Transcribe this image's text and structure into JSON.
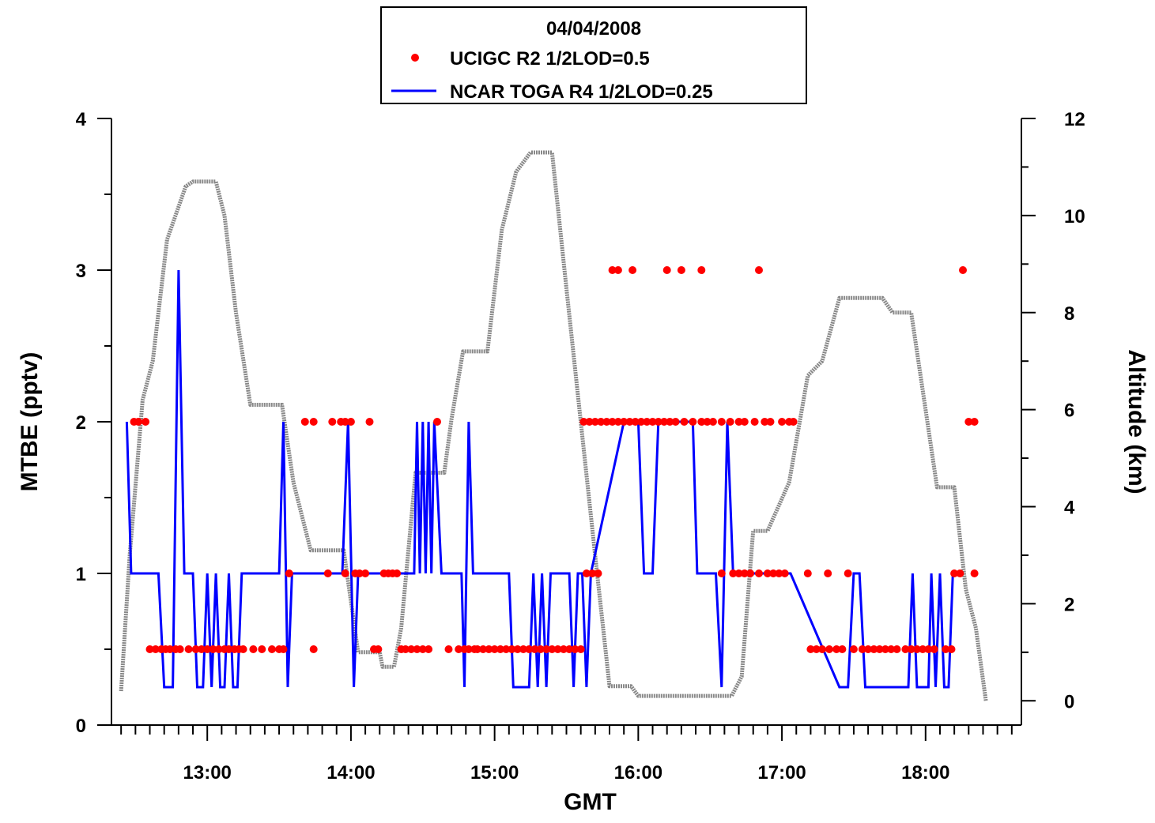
{
  "chart_data": {
    "type": "line",
    "title": "04/04/2008",
    "xlabel": "GMT",
    "ylabel": "MTBE (pptv)",
    "y2label": "Altitude (km)",
    "xlim": [
      12.333,
      18.667
    ],
    "ylim": [
      0,
      4
    ],
    "y2lim": [
      -0.5,
      12
    ],
    "x_ticks": [
      13,
      14,
      15,
      16,
      17,
      18
    ],
    "x_tick_labels": [
      "13:00",
      "14:00",
      "15:00",
      "16:00",
      "17:00",
      "18:00"
    ],
    "y_ticks": [
      0,
      1,
      2,
      3,
      4
    ],
    "y_tick_labels": [
      "0",
      "1",
      "2",
      "3",
      "4"
    ],
    "y2_ticks": [
      0,
      2,
      4,
      6,
      8,
      10,
      12
    ],
    "y2_tick_labels": [
      "0",
      "2",
      "4",
      "6",
      "8",
      "10",
      "12"
    ],
    "legend_position": "top-center",
    "series": [
      {
        "name": "UCIGC R2 1/2LOD=0.5",
        "style": "markers",
        "color": "#ff0000",
        "axis": "left",
        "points": [
          [
            12.49,
            2
          ],
          [
            12.52,
            2
          ],
          [
            12.57,
            2
          ],
          [
            12.6,
            0.5
          ],
          [
            12.64,
            0.5
          ],
          [
            12.68,
            0.5
          ],
          [
            12.71,
            0.5
          ],
          [
            12.74,
            0.5
          ],
          [
            12.78,
            0.5
          ],
          [
            12.81,
            0.5
          ],
          [
            12.87,
            0.5
          ],
          [
            12.92,
            0.5
          ],
          [
            12.96,
            0.5
          ],
          [
            13.0,
            0.5
          ],
          [
            13.04,
            0.5
          ],
          [
            13.08,
            0.5
          ],
          [
            13.12,
            0.5
          ],
          [
            13.15,
            0.5
          ],
          [
            13.19,
            0.5
          ],
          [
            13.22,
            0.5
          ],
          [
            13.25,
            0.5
          ],
          [
            13.32,
            0.5
          ],
          [
            13.38,
            0.5
          ],
          [
            13.45,
            0.5
          ],
          [
            13.5,
            0.5
          ],
          [
            13.53,
            0.5
          ],
          [
            13.57,
            1
          ],
          [
            13.68,
            2
          ],
          [
            13.74,
            2
          ],
          [
            13.74,
            0.5
          ],
          [
            13.84,
            1
          ],
          [
            13.87,
            2
          ],
          [
            13.93,
            2
          ],
          [
            13.96,
            2
          ],
          [
            13.96,
            1
          ],
          [
            14.0,
            2
          ],
          [
            14.03,
            1
          ],
          [
            14.06,
            1
          ],
          [
            14.1,
            1
          ],
          [
            14.13,
            2
          ],
          [
            14.16,
            0.5
          ],
          [
            14.19,
            0.5
          ],
          [
            14.23,
            1
          ],
          [
            14.26,
            1
          ],
          [
            14.29,
            1
          ],
          [
            14.32,
            1
          ],
          [
            14.35,
            0.5
          ],
          [
            14.38,
            0.5
          ],
          [
            14.42,
            0.5
          ],
          [
            14.46,
            0.5
          ],
          [
            14.5,
            0.5
          ],
          [
            14.54,
            0.5
          ],
          [
            14.6,
            2
          ],
          [
            14.68,
            0.5
          ],
          [
            14.75,
            0.5
          ],
          [
            14.79,
            0.5
          ],
          [
            14.82,
            0.5
          ],
          [
            14.86,
            0.5
          ],
          [
            14.88,
            0.5
          ],
          [
            14.92,
            0.5
          ],
          [
            14.96,
            0.5
          ],
          [
            15.0,
            0.5
          ],
          [
            15.04,
            0.5
          ],
          [
            15.08,
            0.5
          ],
          [
            15.12,
            0.5
          ],
          [
            15.16,
            0.5
          ],
          [
            15.2,
            0.5
          ],
          [
            15.24,
            0.5
          ],
          [
            15.28,
            0.5
          ],
          [
            15.32,
            0.5
          ],
          [
            15.36,
            0.5
          ],
          [
            15.4,
            0.5
          ],
          [
            15.44,
            0.5
          ],
          [
            15.48,
            0.5
          ],
          [
            15.52,
            0.5
          ],
          [
            15.56,
            0.5
          ],
          [
            15.6,
            0.5
          ],
          [
            15.64,
            1
          ],
          [
            15.68,
            1
          ],
          [
            15.72,
            1
          ],
          [
            15.62,
            2
          ],
          [
            15.66,
            2
          ],
          [
            15.7,
            2
          ],
          [
            15.74,
            2
          ],
          [
            15.78,
            2
          ],
          [
            15.82,
            2
          ],
          [
            15.86,
            2
          ],
          [
            15.9,
            2
          ],
          [
            15.94,
            2
          ],
          [
            15.98,
            2
          ],
          [
            16.02,
            2
          ],
          [
            16.06,
            2
          ],
          [
            16.1,
            2
          ],
          [
            16.14,
            2
          ],
          [
            16.18,
            2
          ],
          [
            16.22,
            2
          ],
          [
            16.26,
            2
          ],
          [
            16.32,
            2
          ],
          [
            16.38,
            2
          ],
          [
            16.44,
            2
          ],
          [
            16.48,
            2
          ],
          [
            16.52,
            2
          ],
          [
            16.58,
            2
          ],
          [
            16.64,
            2
          ],
          [
            16.7,
            2
          ],
          [
            16.74,
            2
          ],
          [
            16.81,
            2
          ],
          [
            16.88,
            2
          ],
          [
            16.92,
            2
          ],
          [
            17.0,
            2
          ],
          [
            17.05,
            2
          ],
          [
            17.08,
            2
          ],
          [
            15.82,
            3
          ],
          [
            15.86,
            3
          ],
          [
            15.96,
            3
          ],
          [
            16.2,
            3
          ],
          [
            16.3,
            3
          ],
          [
            16.44,
            3
          ],
          [
            16.84,
            3
          ],
          [
            18.26,
            3
          ],
          [
            16.58,
            1
          ],
          [
            16.66,
            1
          ],
          [
            16.7,
            1
          ],
          [
            16.74,
            1
          ],
          [
            16.78,
            1
          ],
          [
            16.84,
            1
          ],
          [
            16.9,
            1
          ],
          [
            16.94,
            1
          ],
          [
            16.98,
            1
          ],
          [
            17.02,
            1
          ],
          [
            17.18,
            1
          ],
          [
            17.32,
            1
          ],
          [
            17.46,
            1
          ],
          [
            17.2,
            0.5
          ],
          [
            17.24,
            0.5
          ],
          [
            17.28,
            0.5
          ],
          [
            17.33,
            0.5
          ],
          [
            17.38,
            0.5
          ],
          [
            17.42,
            0.5
          ],
          [
            17.5,
            0.5
          ],
          [
            17.56,
            0.5
          ],
          [
            17.6,
            0.5
          ],
          [
            17.64,
            0.5
          ],
          [
            17.68,
            0.5
          ],
          [
            17.72,
            0.5
          ],
          [
            17.76,
            0.5
          ],
          [
            17.8,
            0.5
          ],
          [
            17.86,
            0.5
          ],
          [
            17.9,
            0.5
          ],
          [
            17.94,
            0.5
          ],
          [
            17.98,
            0.5
          ],
          [
            18.02,
            0.5
          ],
          [
            18.06,
            0.5
          ],
          [
            18.14,
            0.5
          ],
          [
            18.18,
            0.5
          ],
          [
            18.2,
            1
          ],
          [
            18.24,
            1
          ],
          [
            18.34,
            1
          ],
          [
            18.3,
            2
          ],
          [
            18.34,
            2
          ]
        ]
      },
      {
        "name": "NCAR TOGA R4 1/2LOD=0.25",
        "style": "line",
        "color": "#0000ff",
        "axis": "left",
        "points": [
          [
            12.44,
            2
          ],
          [
            12.47,
            1
          ],
          [
            12.66,
            1
          ],
          [
            12.7,
            0.25
          ],
          [
            12.76,
            0.25
          ],
          [
            12.8,
            3
          ],
          [
            12.84,
            1
          ],
          [
            12.9,
            1
          ],
          [
            12.93,
            0.25
          ],
          [
            12.97,
            0.25
          ],
          [
            13.0,
            1
          ],
          [
            13.03,
            0.25
          ],
          [
            13.06,
            1
          ],
          [
            13.09,
            0.25
          ],
          [
            13.12,
            0.25
          ],
          [
            13.15,
            1
          ],
          [
            13.18,
            0.25
          ],
          [
            13.21,
            0.25
          ],
          [
            13.24,
            1
          ],
          [
            13.5,
            1
          ],
          [
            13.53,
            2
          ],
          [
            13.56,
            0.25
          ],
          [
            13.59,
            1
          ],
          [
            13.94,
            1
          ],
          [
            13.98,
            2
          ],
          [
            14.02,
            0.25
          ],
          [
            14.05,
            1
          ],
          [
            14.44,
            1
          ],
          [
            14.46,
            2
          ],
          [
            14.48,
            1
          ],
          [
            14.5,
            2
          ],
          [
            14.52,
            1
          ],
          [
            14.54,
            2
          ],
          [
            14.56,
            1
          ],
          [
            14.58,
            2
          ],
          [
            14.63,
            1
          ],
          [
            14.77,
            1
          ],
          [
            14.79,
            0.25
          ],
          [
            14.82,
            2
          ],
          [
            14.85,
            1
          ],
          [
            15.1,
            1
          ],
          [
            15.13,
            0.25
          ],
          [
            15.24,
            0.25
          ],
          [
            15.27,
            1
          ],
          [
            15.3,
            0.25
          ],
          [
            15.33,
            1
          ],
          [
            15.36,
            0.25
          ],
          [
            15.39,
            1
          ],
          [
            15.52,
            1
          ],
          [
            15.55,
            0.25
          ],
          [
            15.58,
            1
          ],
          [
            15.61,
            1
          ],
          [
            15.64,
            0.25
          ],
          [
            15.67,
            1
          ],
          [
            15.9,
            2
          ],
          [
            16.0,
            2
          ],
          [
            16.04,
            1
          ],
          [
            16.1,
            1
          ],
          [
            16.14,
            2
          ],
          [
            16.38,
            2
          ],
          [
            16.41,
            1
          ],
          [
            16.54,
            1
          ],
          [
            16.58,
            0.25
          ],
          [
            16.62,
            2
          ],
          [
            16.66,
            1
          ],
          [
            17.06,
            1
          ],
          [
            17.4,
            0.25
          ],
          [
            17.46,
            0.25
          ],
          [
            17.5,
            1
          ],
          [
            17.54,
            1
          ],
          [
            17.58,
            0.25
          ],
          [
            17.88,
            0.25
          ],
          [
            17.91,
            1
          ],
          [
            17.94,
            0.25
          ],
          [
            18.02,
            0.25
          ],
          [
            18.04,
            1
          ],
          [
            18.07,
            0.25
          ],
          [
            18.1,
            1
          ],
          [
            18.13,
            0.25
          ],
          [
            18.16,
            0.25
          ],
          [
            18.19,
            1
          ]
        ]
      },
      {
        "name": "Altitude",
        "style": "line",
        "color": "#888888",
        "axis": "right",
        "points": [
          [
            12.4,
            0.2
          ],
          [
            12.46,
            3.0
          ],
          [
            12.55,
            6.2
          ],
          [
            12.62,
            7.0
          ],
          [
            12.72,
            9.5
          ],
          [
            12.85,
            10.6
          ],
          [
            12.9,
            10.7
          ],
          [
            13.06,
            10.7
          ],
          [
            13.12,
            10.0
          ],
          [
            13.2,
            8.0
          ],
          [
            13.3,
            6.1
          ],
          [
            13.52,
            6.1
          ],
          [
            13.6,
            4.5
          ],
          [
            13.72,
            3.1
          ],
          [
            13.95,
            3.1
          ],
          [
            14.05,
            1.0
          ],
          [
            14.2,
            1.0
          ],
          [
            14.22,
            0.7
          ],
          [
            14.3,
            0.7
          ],
          [
            14.35,
            1.5
          ],
          [
            14.45,
            4.7
          ],
          [
            14.65,
            4.7
          ],
          [
            14.7,
            5.8
          ],
          [
            14.78,
            7.2
          ],
          [
            14.95,
            7.2
          ],
          [
            15.05,
            9.7
          ],
          [
            15.15,
            10.9
          ],
          [
            15.25,
            11.3
          ],
          [
            15.4,
            11.3
          ],
          [
            15.5,
            8.5
          ],
          [
            15.7,
            3.0
          ],
          [
            15.8,
            0.3
          ],
          [
            15.95,
            0.3
          ],
          [
            16.0,
            0.1
          ],
          [
            16.5,
            0.1
          ],
          [
            16.65,
            0.1
          ],
          [
            16.72,
            0.5
          ],
          [
            16.8,
            3.5
          ],
          [
            16.9,
            3.5
          ],
          [
            17.05,
            4.5
          ],
          [
            17.18,
            6.7
          ],
          [
            17.28,
            7.0
          ],
          [
            17.4,
            8.3
          ],
          [
            17.55,
            8.3
          ],
          [
            17.62,
            8.3
          ],
          [
            17.7,
            8.3
          ],
          [
            17.77,
            8.0
          ],
          [
            17.9,
            8.0
          ],
          [
            18.0,
            6.0
          ],
          [
            18.08,
            4.4
          ],
          [
            18.2,
            4.4
          ],
          [
            18.28,
            2.3
          ],
          [
            18.35,
            1.5
          ],
          [
            18.42,
            0.0
          ]
        ]
      }
    ]
  }
}
